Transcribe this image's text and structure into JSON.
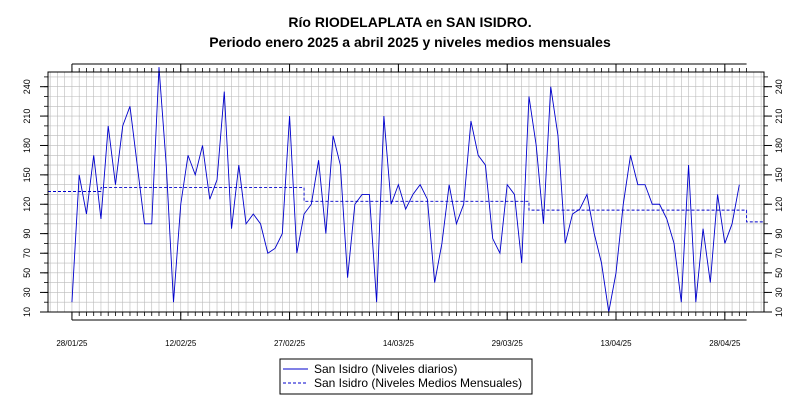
{
  "chart_data": {
    "type": "line",
    "title_line1": "Río RIODELAPLATA en SAN ISIDRO.",
    "title_line2": "Periodo enero 2025 a abril 2025 y niveles medios mensuales",
    "xlabel": "",
    "ylabel": "",
    "ylim": [
      10,
      255
    ],
    "xlim": [
      -3.3,
      95.4
    ],
    "yticks": [
      10,
      30,
      50,
      70,
      90,
      120,
      150,
      180,
      210,
      240
    ],
    "xticks": [
      {
        "x": 0,
        "label": "28/01/25"
      },
      {
        "x": 15,
        "label": "12/02/25"
      },
      {
        "x": 30,
        "label": "27/02/25"
      },
      {
        "x": 45,
        "label": "14/03/25"
      },
      {
        "x": 60,
        "label": "29/03/25"
      },
      {
        "x": 75,
        "label": "13/04/25"
      },
      {
        "x": 90,
        "label": "28/04/25"
      }
    ],
    "x_unit_note": "",
    "grid": true,
    "colors": {
      "series": "#0000cc",
      "grid": "#bbbbbb",
      "axis": "#000000"
    },
    "series": [
      {
        "name": "San Isidro (Niveles diarios)",
        "style": "solid",
        "values": [
          20,
          150,
          110,
          170,
          105,
          200,
          140,
          200,
          220,
          160,
          100,
          100,
          260,
          160,
          20,
          120,
          170,
          150,
          180,
          125,
          145,
          235,
          95,
          160,
          100,
          110,
          100,
          70,
          75,
          90,
          210,
          70,
          110,
          120,
          165,
          90,
          190,
          160,
          45,
          120,
          130,
          130,
          20,
          210,
          120,
          140,
          115,
          130,
          140,
          125,
          40,
          80,
          140,
          100,
          120,
          205,
          170,
          160,
          85,
          70,
          140,
          130,
          60,
          230,
          180,
          100,
          240,
          190,
          80,
          110,
          115,
          130,
          90,
          60,
          10,
          50,
          120,
          170,
          140,
          140,
          120,
          120,
          105,
          80,
          20,
          160,
          20,
          95,
          40,
          130,
          80,
          100,
          140
        ]
      },
      {
        "name": "San Isidro (Niveles Medios Mensuales)",
        "style": "dashed",
        "steps": [
          {
            "x_start": -3.3,
            "x_end": 4,
            "y": 133
          },
          {
            "x_start": 4,
            "x_end": 32,
            "y": 137
          },
          {
            "x_start": 32,
            "x_end": 63,
            "y": 123
          },
          {
            "x_start": 63,
            "x_end": 93,
            "y": 114
          },
          {
            "x_start": 93,
            "x_end": 95.4,
            "y": 102
          }
        ]
      }
    ],
    "legend": {
      "position": "bottom-center",
      "entries": [
        "San Isidro (Niveles diarios)",
        "San Isidro (Niveles Medios Mensuales)"
      ]
    }
  }
}
